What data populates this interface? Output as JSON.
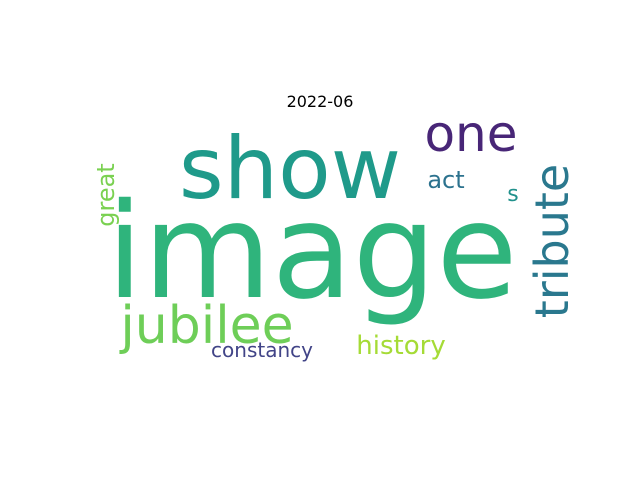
{
  "chart_data": {
    "type": "wordcloud",
    "title": "2022-06",
    "words": [
      {
        "text": "image",
        "weight": 100,
        "color": "#2fb47c",
        "orientation": "horizontal"
      },
      {
        "text": "show",
        "weight": 66,
        "color": "#1f9a8a",
        "orientation": "horizontal"
      },
      {
        "text": "one",
        "weight": 34,
        "color": "#482677",
        "orientation": "horizontal"
      },
      {
        "text": "tribute",
        "weight": 33,
        "color": "#2a788e",
        "orientation": "vertical"
      },
      {
        "text": "jubilee",
        "weight": 32,
        "color": "#6ece58",
        "orientation": "horizontal"
      },
      {
        "text": "history",
        "weight": 16,
        "color": "#a5db36",
        "orientation": "horizontal"
      },
      {
        "text": "act",
        "weight": 15,
        "color": "#2c728e",
        "orientation": "horizontal"
      },
      {
        "text": "great",
        "weight": 14,
        "color": "#7ad151",
        "orientation": "vertical"
      },
      {
        "text": "constancy",
        "weight": 12,
        "color": "#414487",
        "orientation": "horizontal"
      },
      {
        "text": "s",
        "weight": 11,
        "color": "#21918c",
        "orientation": "horizontal"
      }
    ],
    "background": "#ffffff",
    "axes": "off",
    "grid": false
  }
}
